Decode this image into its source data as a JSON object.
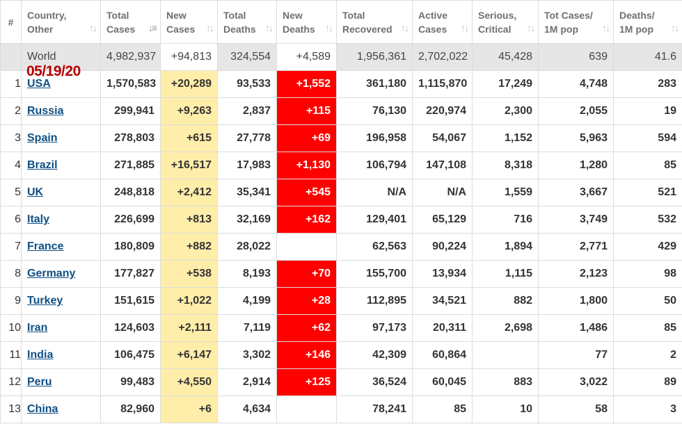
{
  "headers": [
    {
      "key": "idx",
      "label": "#",
      "sortable": false
    },
    {
      "key": "country",
      "label": "Country, Other",
      "sortable": true
    },
    {
      "key": "total_cases",
      "label": "Total Cases",
      "sortable": true,
      "active": true
    },
    {
      "key": "new_cases",
      "label": "New Cases",
      "sortable": true
    },
    {
      "key": "total_deaths",
      "label": "Total Deaths",
      "sortable": true
    },
    {
      "key": "new_deaths",
      "label": "New Deaths",
      "sortable": true
    },
    {
      "key": "total_recovered",
      "label": "Total Recovered",
      "sortable": true
    },
    {
      "key": "active_cases",
      "label": "Active Cases",
      "sortable": true
    },
    {
      "key": "serious",
      "label": "Serious, Critical",
      "sortable": true
    },
    {
      "key": "tot_cases_1m",
      "label": "Tot Cases/ 1M pop",
      "sortable": true
    },
    {
      "key": "deaths_1m",
      "label": "Deaths/ 1M pop",
      "sortable": true
    }
  ],
  "sort_icon": "sort-arrows-icon",
  "date_stamp": "05/19/20",
  "colors": {
    "new_cases_bg": "#ffeeaa",
    "new_deaths_bg": "#ff0000",
    "link": "#0f4f84",
    "world_bg": "#e6e6e6"
  },
  "world": {
    "country": "World",
    "total_cases": "4,982,937",
    "new_cases": "+94,813",
    "total_deaths": "324,554",
    "new_deaths": "+4,589",
    "total_recovered": "1,956,361",
    "active_cases": "2,702,022",
    "serious": "45,428",
    "tot_cases_1m": "639",
    "deaths_1m": "41.6"
  },
  "rows": [
    {
      "idx": "1",
      "country": "USA",
      "total_cases": "1,570,583",
      "new_cases": "+20,289",
      "total_deaths": "93,533",
      "new_deaths": "+1,552",
      "total_recovered": "361,180",
      "active_cases": "1,115,870",
      "serious": "17,249",
      "tot_cases_1m": "4,748",
      "deaths_1m": "283"
    },
    {
      "idx": "2",
      "country": "Russia",
      "total_cases": "299,941",
      "new_cases": "+9,263",
      "total_deaths": "2,837",
      "new_deaths": "+115",
      "total_recovered": "76,130",
      "active_cases": "220,974",
      "serious": "2,300",
      "tot_cases_1m": "2,055",
      "deaths_1m": "19"
    },
    {
      "idx": "3",
      "country": "Spain",
      "total_cases": "278,803",
      "new_cases": "+615",
      "total_deaths": "27,778",
      "new_deaths": "+69",
      "total_recovered": "196,958",
      "active_cases": "54,067",
      "serious": "1,152",
      "tot_cases_1m": "5,963",
      "deaths_1m": "594"
    },
    {
      "idx": "4",
      "country": "Brazil",
      "total_cases": "271,885",
      "new_cases": "+16,517",
      "total_deaths": "17,983",
      "new_deaths": "+1,130",
      "total_recovered": "106,794",
      "active_cases": "147,108",
      "serious": "8,318",
      "tot_cases_1m": "1,280",
      "deaths_1m": "85"
    },
    {
      "idx": "5",
      "country": "UK",
      "total_cases": "248,818",
      "new_cases": "+2,412",
      "total_deaths": "35,341",
      "new_deaths": "+545",
      "total_recovered": "N/A",
      "active_cases": "N/A",
      "serious": "1,559",
      "tot_cases_1m": "3,667",
      "deaths_1m": "521"
    },
    {
      "idx": "6",
      "country": "Italy",
      "total_cases": "226,699",
      "new_cases": "+813",
      "total_deaths": "32,169",
      "new_deaths": "+162",
      "total_recovered": "129,401",
      "active_cases": "65,129",
      "serious": "716",
      "tot_cases_1m": "3,749",
      "deaths_1m": "532"
    },
    {
      "idx": "7",
      "country": "France",
      "total_cases": "180,809",
      "new_cases": "+882",
      "total_deaths": "28,022",
      "new_deaths": "",
      "total_recovered": "62,563",
      "active_cases": "90,224",
      "serious": "1,894",
      "tot_cases_1m": "2,771",
      "deaths_1m": "429"
    },
    {
      "idx": "8",
      "country": "Germany",
      "total_cases": "177,827",
      "new_cases": "+538",
      "total_deaths": "8,193",
      "new_deaths": "+70",
      "total_recovered": "155,700",
      "active_cases": "13,934",
      "serious": "1,115",
      "tot_cases_1m": "2,123",
      "deaths_1m": "98"
    },
    {
      "idx": "9",
      "country": "Turkey",
      "total_cases": "151,615",
      "new_cases": "+1,022",
      "total_deaths": "4,199",
      "new_deaths": "+28",
      "total_recovered": "112,895",
      "active_cases": "34,521",
      "serious": "882",
      "tot_cases_1m": "1,800",
      "deaths_1m": "50"
    },
    {
      "idx": "10",
      "country": "Iran",
      "total_cases": "124,603",
      "new_cases": "+2,111",
      "total_deaths": "7,119",
      "new_deaths": "+62",
      "total_recovered": "97,173",
      "active_cases": "20,311",
      "serious": "2,698",
      "tot_cases_1m": "1,486",
      "deaths_1m": "85"
    },
    {
      "idx": "11",
      "country": "India",
      "total_cases": "106,475",
      "new_cases": "+6,147",
      "total_deaths": "3,302",
      "new_deaths": "+146",
      "total_recovered": "42,309",
      "active_cases": "60,864",
      "serious": "",
      "tot_cases_1m": "77",
      "deaths_1m": "2"
    },
    {
      "idx": "12",
      "country": "Peru",
      "total_cases": "99,483",
      "new_cases": "+4,550",
      "total_deaths": "2,914",
      "new_deaths": "+125",
      "total_recovered": "36,524",
      "active_cases": "60,045",
      "serious": "883",
      "tot_cases_1m": "3,022",
      "deaths_1m": "89"
    },
    {
      "idx": "13",
      "country": "China",
      "total_cases": "82,960",
      "new_cases": "+6",
      "total_deaths": "4,634",
      "new_deaths": "",
      "total_recovered": "78,241",
      "active_cases": "85",
      "serious": "10",
      "tot_cases_1m": "58",
      "deaths_1m": "3"
    }
  ]
}
